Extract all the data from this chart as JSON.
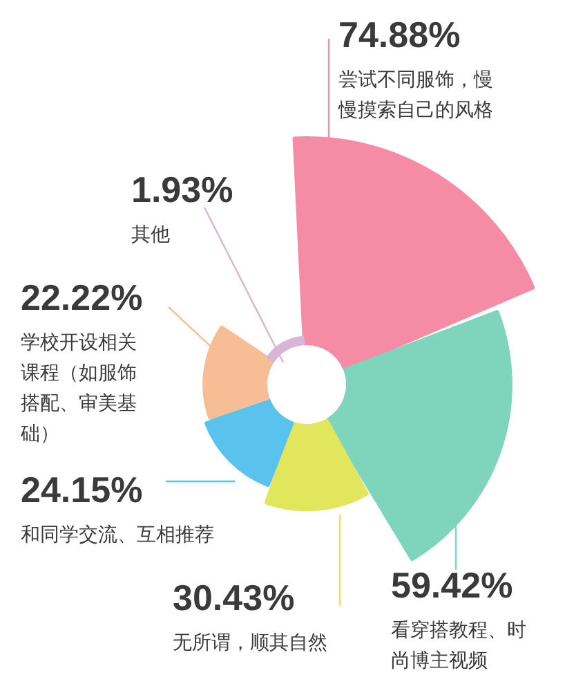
{
  "chart_data": {
    "type": "other",
    "categories": [
      "尝试不同服饰，慢慢摸索自己的风格",
      "看穿搭教程、时尚博主视频",
      "无所谓，顺其自然",
      "和同学交流、互相推荐",
      "学校开设相关课程（如服饰搭配、审美基础）",
      "其他"
    ],
    "values": [
      74.88,
      59.42,
      30.43,
      24.15,
      22.22,
      1.93
    ],
    "value_labels": [
      "74.88%",
      "59.42%",
      "30.43%",
      "24.15%",
      "22.22%",
      "1.93%"
    ],
    "colors": [
      "#f58ba5",
      "#7fd4bc",
      "#e2e65c",
      "#59c3ee",
      "#f7bd95",
      "#d8b4d6"
    ]
  }
}
